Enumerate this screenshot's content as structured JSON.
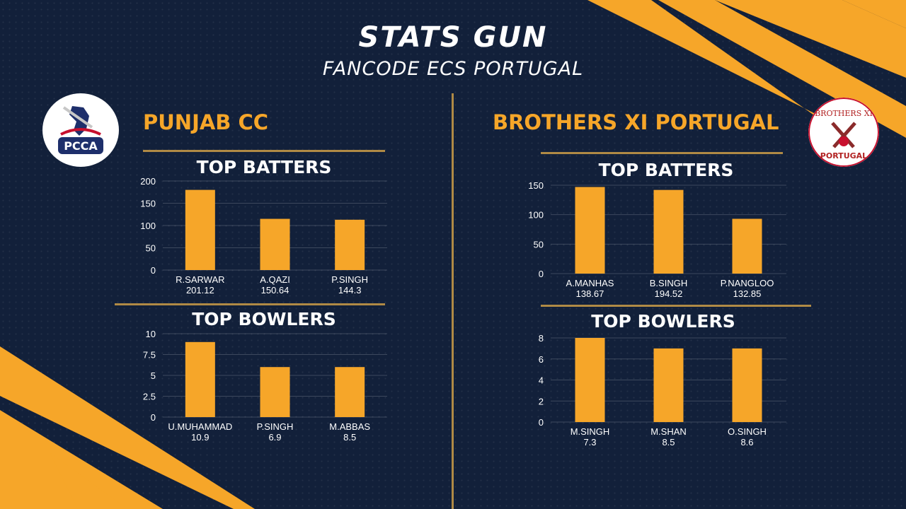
{
  "header": {
    "title": "STATS GUN",
    "subtitle": "FANCODE ECS PORTUGAL"
  },
  "colors": {
    "background": "#12203a",
    "accent": "#f6a629",
    "rule": "#b08a45",
    "bar": "#f6a629"
  },
  "teams": [
    {
      "name": "PUNJAB CC",
      "logo": {
        "text": "PCCA",
        "icon": "cricket-batter-logo"
      },
      "batters_title": "TOP BATTERS",
      "bowlers_title": "TOP BOWLERS"
    },
    {
      "name": "BROTHERS XI PORTUGAL",
      "logo": {
        "text_top": "BROTHERS XI",
        "text_bottom": "PORTUGAL",
        "icon": "crossed-bats-logo"
      },
      "batters_title": "TOP BATTERS",
      "bowlers_title": "TOP BOWLERS"
    }
  ],
  "chart_data": [
    {
      "type": "bar",
      "title": "TOP BATTERS",
      "team": "PUNJAB CC",
      "categories": [
        "R.SARWAR",
        "A.QAZI",
        "P.SINGH"
      ],
      "value_labels": [
        "201.12",
        "150.64",
        "144.3"
      ],
      "values": [
        180,
        115,
        113
      ],
      "yticks": [
        "0",
        "50",
        "100",
        "150",
        "200"
      ],
      "ylim": [
        0,
        200
      ],
      "grid": true
    },
    {
      "type": "bar",
      "title": "TOP BOWLERS",
      "team": "PUNJAB CC",
      "categories": [
        "U.MUHAMMAD",
        "P.SINGH",
        "M.ABBAS"
      ],
      "value_labels": [
        "10.9",
        "6.9",
        "8.5"
      ],
      "values": [
        9,
        6,
        6
      ],
      "yticks": [
        "0",
        "2.5",
        "5",
        "7.5",
        "10"
      ],
      "ylim": [
        0,
        10
      ],
      "grid": true
    },
    {
      "type": "bar",
      "title": "TOP BATTERS",
      "team": "BROTHERS XI PORTUGAL",
      "categories": [
        "A.MANHAS",
        "B.SINGH",
        "P.NANGLOO"
      ],
      "value_labels": [
        "138.67",
        "194.52",
        "132.85"
      ],
      "values": [
        147,
        142,
        93
      ],
      "yticks": [
        "0",
        "50",
        "100",
        "150"
      ],
      "ylim": [
        0,
        150
      ],
      "grid": true
    },
    {
      "type": "bar",
      "title": "TOP BOWLERS",
      "team": "BROTHERS XI PORTUGAL",
      "categories": [
        "M.SINGH",
        "M.SHAN",
        "O.SINGH"
      ],
      "value_labels": [
        "7.3",
        "8.5",
        "8.6"
      ],
      "values": [
        8,
        7,
        7
      ],
      "yticks": [
        "0",
        "2",
        "4",
        "6",
        "8"
      ],
      "ylim": [
        0,
        8
      ],
      "grid": true
    }
  ]
}
